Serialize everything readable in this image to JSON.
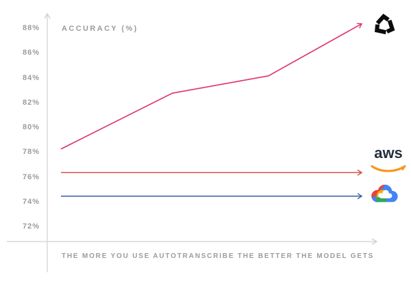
{
  "chart_data": {
    "type": "line",
    "title": "ACCURACY (%)",
    "xlabel": "THE MORE YOU USE AUTOTRANSCRIBE THE BETTER THE MODEL GETS",
    "ylabel": "",
    "ylim": [
      72,
      88
    ],
    "grid": false,
    "legend": "none (logos mark each line at right end)",
    "background": "#ffffff",
    "y_ticks": [
      {
        "value": 88,
        "label": "88%"
      },
      {
        "value": 86,
        "label": "86%"
      },
      {
        "value": 84,
        "label": "84%"
      },
      {
        "value": 82,
        "label": "82%"
      },
      {
        "value": 80,
        "label": "80%"
      },
      {
        "value": 78,
        "label": "78%"
      },
      {
        "value": 76,
        "label": "76%"
      },
      {
        "value": 74,
        "label": "74%"
      },
      {
        "value": 72,
        "label": "72%"
      }
    ],
    "series": [
      {
        "name": "AutoTranscribe (AssemblyAI)",
        "color": "#e23a6c",
        "style": "rising line with arrowhead, ends at AssemblyAI logo",
        "x": [
          0,
          0.37,
          0.69,
          1
        ],
        "values": [
          78.3,
          82.8,
          84.2,
          88.4
        ]
      },
      {
        "name": "AWS",
        "color": "#d95245",
        "style": "flat line with arrowhead, ends at AWS logo",
        "x": [
          0,
          1
        ],
        "values": [
          76.4,
          76.4
        ]
      },
      {
        "name": "Google Cloud",
        "color": "#3e63ad",
        "style": "flat line with arrowhead, ends at Google Cloud logo",
        "x": [
          0,
          1
        ],
        "values": [
          74.5,
          74.5
        ]
      }
    ]
  },
  "logos": {
    "assemblyai": "AssemblyAI mark (black triskelion)",
    "aws_text": "aws",
    "google_cloud": "Google Cloud mark (multicolor cloud)"
  },
  "axes_style": {
    "axis_color": "#d8d8d8",
    "label_color": "#9b9b9b"
  }
}
